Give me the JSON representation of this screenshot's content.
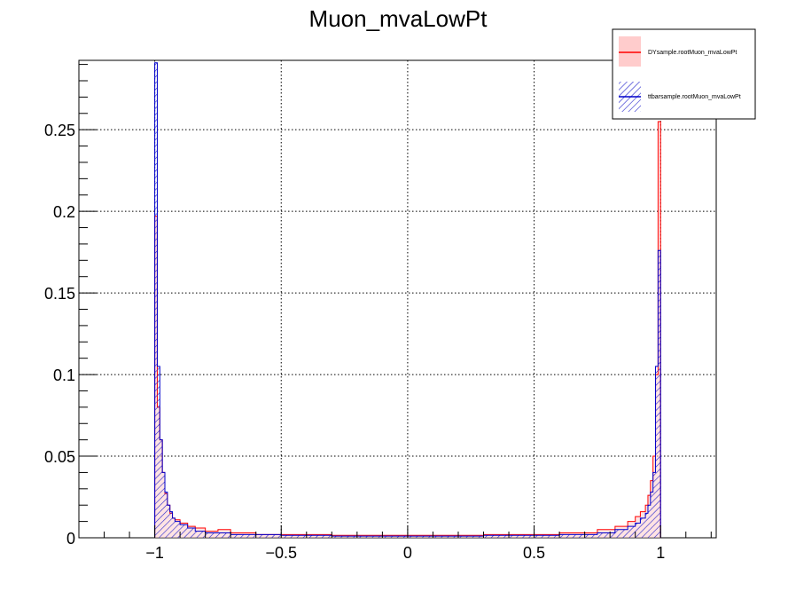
{
  "chart_data": {
    "type": "histogram",
    "title": "Muon_mvaLowPt",
    "xlim": [
      -1.3,
      1.22
    ],
    "ylim": [
      0,
      0.2925
    ],
    "x_ticks": [
      -1,
      -0.5,
      0,
      0.5,
      1
    ],
    "x_tick_labels": [
      "−1",
      "−0.5",
      "0",
      "0.5",
      "1"
    ],
    "y_ticks": [
      0,
      0.05,
      0.1,
      0.15,
      0.2,
      0.25
    ],
    "y_tick_labels": [
      "0",
      "0.05",
      "0.1",
      "0.15",
      "0.2",
      "0.25"
    ],
    "grid": true,
    "legend_position": "top-right",
    "series": [
      {
        "name": "DYsample.rootMuon_mvaLowPt",
        "color": "#ff0000",
        "fill": "#ffcccc",
        "style": "solid-fill",
        "bins": [
          [
            -1.0,
            -0.99,
            0.197
          ],
          [
            -0.99,
            -0.98,
            0.08
          ],
          [
            -0.98,
            -0.97,
            0.06
          ],
          [
            -0.97,
            -0.96,
            0.04
          ],
          [
            -0.96,
            -0.95,
            0.027
          ],
          [
            -0.95,
            -0.94,
            0.02
          ],
          [
            -0.94,
            -0.93,
            0.015
          ],
          [
            -0.93,
            -0.92,
            0.012
          ],
          [
            -0.92,
            -0.9,
            0.011
          ],
          [
            -0.9,
            -0.87,
            0.009
          ],
          [
            -0.87,
            -0.84,
            0.007
          ],
          [
            -0.84,
            -0.8,
            0.006
          ],
          [
            -0.8,
            -0.75,
            0.004
          ],
          [
            -0.75,
            -0.7,
            0.005
          ],
          [
            -0.7,
            -0.6,
            0.003
          ],
          [
            -0.6,
            -0.5,
            0.002
          ],
          [
            -0.5,
            -0.3,
            0.002
          ],
          [
            -0.3,
            0.0,
            0.0015
          ],
          [
            0.0,
            0.3,
            0.0015
          ],
          [
            0.3,
            0.6,
            0.002
          ],
          [
            0.6,
            0.75,
            0.003
          ],
          [
            0.75,
            0.82,
            0.005
          ],
          [
            0.82,
            0.87,
            0.007
          ],
          [
            0.87,
            0.9,
            0.01
          ],
          [
            0.9,
            0.92,
            0.013
          ],
          [
            0.92,
            0.94,
            0.016
          ],
          [
            0.94,
            0.95,
            0.02
          ],
          [
            0.95,
            0.96,
            0.026
          ],
          [
            0.96,
            0.97,
            0.035
          ],
          [
            0.97,
            0.98,
            0.05
          ],
          [
            0.98,
            0.99,
            0.1
          ],
          [
            0.99,
            1.0,
            0.255
          ]
        ]
      },
      {
        "name": "ttbarsample.rootMuon_mvaLowPt",
        "color": "#0000cc",
        "fill": "#2222cc",
        "style": "hatched",
        "bins": [
          [
            -1.0,
            -0.99,
            0.291
          ],
          [
            -0.99,
            -0.98,
            0.105
          ],
          [
            -0.98,
            -0.97,
            0.06
          ],
          [
            -0.97,
            -0.96,
            0.04
          ],
          [
            -0.96,
            -0.95,
            0.028
          ],
          [
            -0.95,
            -0.94,
            0.02
          ],
          [
            -0.94,
            -0.93,
            0.016
          ],
          [
            -0.93,
            -0.92,
            0.012
          ],
          [
            -0.92,
            -0.9,
            0.01
          ],
          [
            -0.9,
            -0.87,
            0.008
          ],
          [
            -0.87,
            -0.84,
            0.006
          ],
          [
            -0.84,
            -0.8,
            0.004
          ],
          [
            -0.8,
            -0.75,
            0.003
          ],
          [
            -0.75,
            -0.7,
            0.003
          ],
          [
            -0.7,
            -0.6,
            0.002
          ],
          [
            -0.6,
            -0.5,
            0.002
          ],
          [
            -0.5,
            -0.3,
            0.0015
          ],
          [
            -0.3,
            0.0,
            0.001
          ],
          [
            0.0,
            0.3,
            0.001
          ],
          [
            0.3,
            0.6,
            0.0015
          ],
          [
            0.6,
            0.75,
            0.002
          ],
          [
            0.75,
            0.82,
            0.003
          ],
          [
            0.82,
            0.87,
            0.005
          ],
          [
            0.87,
            0.9,
            0.007
          ],
          [
            0.9,
            0.92,
            0.009
          ],
          [
            0.92,
            0.94,
            0.012
          ],
          [
            0.94,
            0.95,
            0.015
          ],
          [
            0.95,
            0.96,
            0.02
          ],
          [
            0.96,
            0.97,
            0.028
          ],
          [
            0.97,
            0.98,
            0.04
          ],
          [
            0.98,
            0.99,
            0.105
          ],
          [
            0.99,
            1.0,
            0.176
          ]
        ]
      }
    ]
  }
}
